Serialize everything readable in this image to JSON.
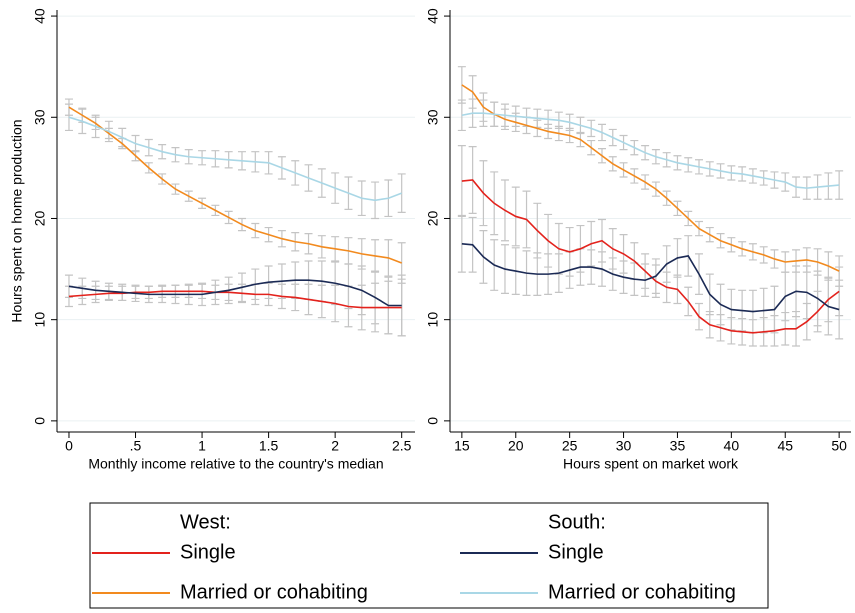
{
  "chart_data": [
    {
      "type": "line",
      "ylabel": "Hours spent on home production",
      "xlabel": "Monthly income relative to the country's median",
      "x": [
        0,
        0.1,
        0.2,
        0.3,
        0.4,
        0.5,
        0.6,
        0.7,
        0.8,
        0.9,
        1,
        1.1,
        1.2,
        1.3,
        1.4,
        1.5,
        1.6,
        1.7,
        1.8,
        1.9,
        2,
        2.1,
        2.2,
        2.3,
        2.4,
        2.5
      ],
      "xlim": [
        -0.09,
        2.6
      ],
      "xticks": [
        0,
        {
          "value": 0.5,
          "label": ".5"
        },
        1,
        1.5,
        2,
        2.5
      ],
      "ylim": [
        -1.1,
        40.6
      ],
      "yticks": [
        0,
        10,
        20,
        30,
        40
      ],
      "grid": true,
      "series": [
        {
          "color": "#e3221c",
          "values": [
            12.3,
            12.4,
            12.5,
            12.6,
            12.6,
            12.7,
            12.7,
            12.8,
            12.8,
            12.8,
            12.8,
            12.7,
            12.7,
            12.6,
            12.5,
            12.5,
            12.3,
            12.2,
            12.0,
            11.8,
            11.6,
            11.3,
            11.2,
            11.2,
            11.2,
            11.2
          ],
          "errors": [
            1.0,
            0.9,
            0.8,
            0.7,
            0.7,
            0.6,
            0.6,
            0.6,
            0.6,
            0.6,
            0.7,
            0.7,
            0.8,
            0.9,
            1.0,
            1.1,
            1.2,
            1.3,
            1.5,
            1.6,
            1.8,
            2.0,
            2.2,
            2.4,
            2.6,
            2.8
          ]
        },
        {
          "color": "#f28a1e",
          "values": [
            31.0,
            30.2,
            29.4,
            28.4,
            27.4,
            26.2,
            25.0,
            23.9,
            22.9,
            22.2,
            21.5,
            20.8,
            20.1,
            19.4,
            18.8,
            18.4,
            18.0,
            17.7,
            17.5,
            17.2,
            17.0,
            16.8,
            16.5,
            16.3,
            16.1,
            15.6
          ],
          "errors": [
            0.8,
            0.7,
            0.6,
            0.5,
            0.5,
            0.5,
            0.5,
            0.5,
            0.5,
            0.5,
            0.5,
            0.5,
            0.6,
            0.6,
            0.7,
            0.7,
            0.8,
            0.9,
            1.0,
            1.1,
            1.2,
            1.3,
            1.5,
            1.6,
            1.8,
            2.0
          ]
        },
        {
          "color": "#1b2a55",
          "values": [
            13.3,
            13.1,
            12.9,
            12.8,
            12.7,
            12.6,
            12.5,
            12.5,
            12.5,
            12.5,
            12.5,
            12.7,
            12.9,
            13.2,
            13.5,
            13.7,
            13.8,
            13.9,
            13.9,
            13.8,
            13.6,
            13.3,
            12.9,
            12.2,
            11.4,
            11.4
          ],
          "errors": [
            1.1,
            1.0,
            0.9,
            0.8,
            0.8,
            0.8,
            0.8,
            0.8,
            0.9,
            1.0,
            1.1,
            1.2,
            1.3,
            1.4,
            1.5,
            1.6,
            1.7,
            1.8,
            1.9,
            2.0,
            2.1,
            2.2,
            2.4,
            2.6,
            2.8,
            3.0
          ]
        },
        {
          "color": "#a9d7e6",
          "values": [
            30.0,
            29.6,
            29.1,
            28.6,
            28.0,
            27.4,
            27.0,
            26.6,
            26.3,
            26.1,
            26.0,
            25.9,
            25.8,
            25.7,
            25.6,
            25.5,
            25.0,
            24.5,
            24.0,
            23.5,
            23.0,
            22.5,
            22.0,
            21.8,
            22.0,
            22.5
          ],
          "errors": [
            1.3,
            1.2,
            1.1,
            1.0,
            0.9,
            0.8,
            0.8,
            0.7,
            0.7,
            0.7,
            0.7,
            0.8,
            0.8,
            0.9,
            1.0,
            1.1,
            1.1,
            1.2,
            1.3,
            1.4,
            1.5,
            1.6,
            1.7,
            1.8,
            1.8,
            1.9
          ]
        }
      ]
    },
    {
      "type": "line",
      "xlabel": "Hours spent on market work",
      "x": [
        15,
        16,
        17,
        18,
        19,
        20,
        21,
        22,
        23,
        24,
        25,
        26,
        27,
        28,
        29,
        30,
        31,
        32,
        33,
        34,
        35,
        36,
        37,
        38,
        39,
        40,
        41,
        42,
        43,
        44,
        45,
        46,
        47,
        48,
        49,
        50
      ],
      "xlim": [
        13.9,
        51.1
      ],
      "xticks": [
        15,
        20,
        25,
        30,
        35,
        40,
        45,
        50
      ],
      "ylim": [
        -1.1,
        40.6
      ],
      "yticks": [
        0,
        10,
        20,
        30,
        40
      ],
      "grid": true,
      "series": [
        {
          "color": "#e3221c",
          "values": [
            23.7,
            23.8,
            22.5,
            21.5,
            20.8,
            20.2,
            19.9,
            18.8,
            17.8,
            17.0,
            16.7,
            17.0,
            17.5,
            17.8,
            17.0,
            16.5,
            15.8,
            14.8,
            13.8,
            13.2,
            13.0,
            11.8,
            10.3,
            9.5,
            9.2,
            8.9,
            8.8,
            8.7,
            8.8,
            8.9,
            9.1,
            9.1,
            9.8,
            10.8,
            12.0,
            12.8
          ],
          "errors": [
            3.5,
            3.3,
            3.2,
            3.1,
            3.0,
            2.9,
            2.8,
            2.7,
            2.6,
            2.5,
            2.4,
            2.3,
            2.2,
            2.1,
            2.0,
            1.9,
            1.8,
            1.7,
            1.6,
            1.5,
            1.4,
            1.4,
            1.3,
            1.3,
            1.3,
            1.3,
            1.3,
            1.3,
            1.4,
            1.5,
            1.6,
            1.7,
            1.8,
            2.0,
            2.2,
            2.4
          ]
        },
        {
          "color": "#f28a1e",
          "values": [
            33.2,
            32.5,
            31.0,
            30.3,
            29.8,
            29.5,
            29.2,
            28.9,
            28.6,
            28.4,
            28.2,
            27.8,
            27.0,
            26.2,
            25.4,
            24.8,
            24.2,
            23.6,
            22.9,
            22.0,
            21.0,
            20.0,
            19.0,
            18.4,
            17.8,
            17.4,
            17.0,
            16.7,
            16.4,
            16.0,
            15.7,
            15.8,
            15.9,
            15.7,
            15.3,
            14.8
          ],
          "errors": [
            1.8,
            1.6,
            1.4,
            1.2,
            1.0,
            0.9,
            0.8,
            0.8,
            0.7,
            0.7,
            0.7,
            0.7,
            0.7,
            0.7,
            0.7,
            0.7,
            0.7,
            0.7,
            0.7,
            0.7,
            0.7,
            0.7,
            0.7,
            0.7,
            0.7,
            0.7,
            0.7,
            0.8,
            0.8,
            0.9,
            1.0,
            1.1,
            1.2,
            1.3,
            1.4,
            1.5
          ]
        },
        {
          "color": "#1b2a55",
          "values": [
            17.5,
            17.4,
            16.2,
            15.4,
            15.0,
            14.8,
            14.6,
            14.5,
            14.5,
            14.6,
            14.9,
            15.2,
            15.2,
            15.0,
            14.5,
            14.2,
            14.0,
            13.9,
            14.3,
            15.5,
            16.1,
            16.3,
            14.5,
            12.5,
            11.5,
            11.0,
            10.9,
            10.8,
            10.9,
            11.0,
            12.3,
            12.8,
            12.7,
            12.1,
            11.3,
            11.0
          ],
          "errors": [
            2.8,
            2.7,
            2.6,
            2.5,
            2.4,
            2.3,
            2.2,
            2.1,
            2.0,
            1.9,
            1.8,
            1.8,
            1.7,
            1.7,
            1.6,
            1.6,
            1.6,
            1.6,
            1.7,
            1.8,
            1.9,
            2.0,
            2.0,
            2.0,
            2.0,
            2.0,
            2.0,
            2.1,
            2.2,
            2.3,
            2.4,
            2.5,
            2.6,
            2.7,
            2.8,
            2.9
          ]
        },
        {
          "color": "#a9d7e6",
          "values": [
            30.2,
            30.4,
            30.4,
            30.3,
            30.2,
            30.1,
            30.0,
            29.9,
            29.8,
            29.7,
            29.5,
            29.2,
            28.9,
            28.5,
            28.0,
            27.5,
            27.0,
            26.5,
            26.1,
            25.8,
            25.5,
            25.3,
            25.1,
            24.9,
            24.7,
            24.5,
            24.4,
            24.2,
            24.0,
            23.8,
            23.6,
            23.1,
            23.0,
            23.1,
            23.2,
            23.3
          ],
          "errors": [
            1.5,
            1.4,
            1.3,
            1.2,
            1.1,
            1.0,
            0.9,
            0.9,
            0.9,
            0.8,
            0.8,
            0.8,
            0.8,
            0.8,
            0.8,
            0.7,
            0.7,
            0.7,
            0.7,
            0.7,
            0.7,
            0.7,
            0.7,
            0.7,
            0.7,
            0.7,
            0.7,
            0.7,
            0.7,
            0.8,
            0.9,
            1.0,
            1.1,
            1.2,
            1.3,
            1.4
          ]
        }
      ]
    }
  ],
  "legend": [
    {
      "title": "West:",
      "entries": [
        {
          "name": "Single",
          "color": "#e3221c"
        },
        {
          "name": "Married or cohabiting",
          "color": "#f28a1e"
        }
      ]
    },
    {
      "title": "South:",
      "entries": [
        {
          "name": "Single",
          "color": "#1b2a55"
        },
        {
          "name": "Married or cohabiting",
          "color": "#a9d7e6"
        }
      ]
    }
  ]
}
